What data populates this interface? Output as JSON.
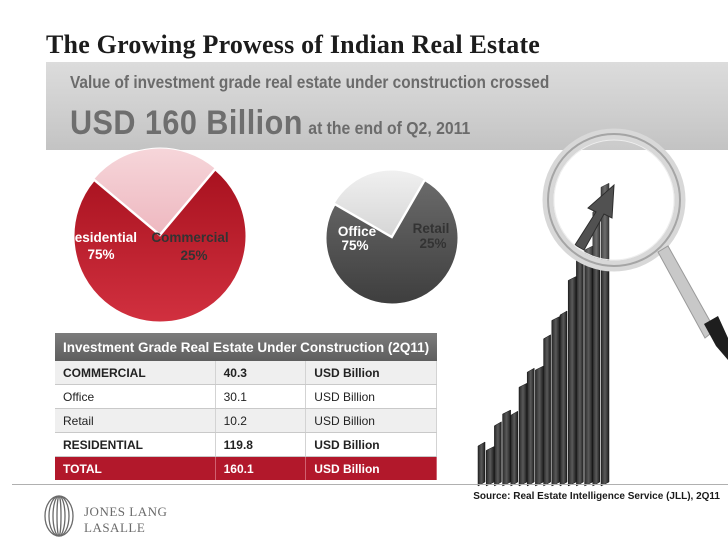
{
  "title": "The Growing Prowess of Indian Real Estate",
  "banner": {
    "subtitle": "Value of investment grade real estate under construction crossed",
    "headline_big": "USD 160 Billion",
    "headline_small": "at the end of Q2, 2011"
  },
  "chart_data": [
    {
      "type": "pie",
      "labels": [
        "Residential",
        "Commercial"
      ],
      "values": [
        75,
        25
      ],
      "value_labels": [
        "75%",
        "25%"
      ],
      "colors": [
        "#b81a2a",
        "#f3c9cf"
      ]
    },
    {
      "type": "pie",
      "labels": [
        "Office",
        "Retail"
      ],
      "values": [
        75,
        25
      ],
      "value_labels": [
        "75%",
        "25%"
      ],
      "colors": [
        "#555555",
        "#e6e6e6"
      ]
    }
  ],
  "table": {
    "title": "Investment Grade Real Estate Under Construction (2Q11)",
    "rows": [
      [
        "COMMERCIAL",
        "40.3",
        "USD Billion"
      ],
      [
        "Office",
        "30.1",
        "USD Billion"
      ],
      [
        "Retail",
        "10.2",
        "USD Billion"
      ],
      [
        "RESIDENTIAL",
        "119.8",
        "USD Billion"
      ],
      [
        "TOTAL",
        "160.1",
        "USD Billion"
      ]
    ]
  },
  "source": "Source: Real Estate Intelligence Service (JLL), 2Q11",
  "logo": {
    "line1": "JONES LANG",
    "line2": "LASALLE"
  },
  "colors": {
    "accent": "#b2182b",
    "banner": "#d0d0d0",
    "header": "#6e6e6e"
  }
}
